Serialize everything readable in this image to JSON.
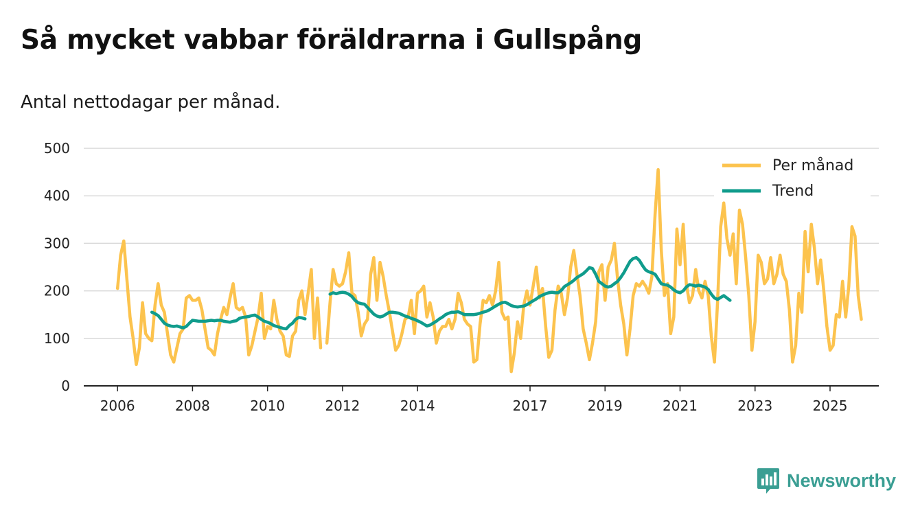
{
  "title": "Så mycket vabbar föräldrarna i Gullspång",
  "subtitle": "Antal nettodagar per månad.",
  "brand": {
    "name": "Newsworthy",
    "icon": "newsworthy-logo-icon"
  },
  "colors": {
    "monthly": "#fcc34e",
    "trend": "#109c8c",
    "grid": "#d9d9d9",
    "axis": "#222222",
    "brand": "#3a9e93"
  },
  "chart_data": {
    "type": "line",
    "title": "Så mycket vabbar föräldrarna i Gullspång",
    "subtitle": "Antal nettodagar per månad.",
    "xlabel": "",
    "ylabel": "",
    "ylim": [
      0,
      500
    ],
    "xlim": [
      2005.1,
      2026.3
    ],
    "grid": true,
    "legend_position": "top-right",
    "y_ticks": [
      0,
      100,
      200,
      300,
      400,
      500
    ],
    "x_ticks": [
      {
        "label": "2006",
        "value": 2006
      },
      {
        "label": "2008",
        "value": 2008
      },
      {
        "label": "2010",
        "value": 2010
      },
      {
        "label": "2012",
        "value": 2012
      },
      {
        "label": "2014",
        "value": 2014
      },
      {
        "label": "2017",
        "value": 2017
      },
      {
        "label": "2019",
        "value": 2019
      },
      {
        "label": "2021",
        "value": 2021
      },
      {
        "label": "2023",
        "value": 2023
      },
      {
        "label": "2025",
        "value": 2025
      }
    ],
    "series": [
      {
        "name": "Per månad",
        "start": 2006.0,
        "values": [
          205,
          275,
          305,
          225,
          145,
          100,
          45,
          80,
          175,
          110,
          100,
          95,
          170,
          215,
          170,
          155,
          110,
          65,
          50,
          80,
          110,
          120,
          185,
          190,
          180,
          180,
          185,
          160,
          120,
          80,
          75,
          65,
          110,
          140,
          165,
          150,
          185,
          215,
          165,
          160,
          165,
          145,
          65,
          85,
          115,
          145,
          195,
          100,
          125,
          120,
          180,
          140,
          115,
          105,
          65,
          62,
          105,
          115,
          180,
          200,
          150,
          195,
          245,
          100,
          185,
          80,
          null,
          90,
          175,
          245,
          215,
          210,
          215,
          240,
          280,
          195,
          190,
          155,
          105,
          130,
          140,
          235,
          270,
          180,
          260,
          230,
          190,
          155,
          115,
          75,
          85,
          110,
          140,
          145,
          180,
          110,
          195,
          200,
          210,
          145,
          175,
          145,
          90,
          115,
          125,
          125,
          140,
          120,
          140,
          195,
          175,
          140,
          130,
          125,
          50,
          55,
          130,
          180,
          175,
          190,
          170,
          200,
          260,
          155,
          140,
          145,
          30,
          70,
          135,
          100,
          170,
          200,
          170,
          210,
          250,
          185,
          205,
          125,
          60,
          75,
          160,
          210,
          195,
          150,
          185,
          250,
          285,
          235,
          190,
          120,
          90,
          55,
          90,
          135,
          240,
          255,
          180,
          250,
          265,
          300,
          225,
          170,
          130,
          65,
          120,
          190,
          215,
          210,
          220,
          210,
          195,
          230,
          360,
          455,
          285,
          190,
          215,
          110,
          145,
          330,
          255,
          340,
          215,
          175,
          190,
          245,
          200,
          185,
          220,
          190,
          105,
          50,
          175,
          335,
          385,
          310,
          275,
          320,
          215,
          370,
          340,
          270,
          190,
          75,
          135,
          275,
          260,
          215,
          225,
          270,
          215,
          235,
          275,
          235,
          220,
          160,
          50,
          85,
          195,
          155,
          325,
          240,
          340,
          290,
          215,
          265,
          200,
          125,
          75,
          85,
          150,
          145,
          220,
          145,
          210,
          335,
          315,
          190,
          140
        ]
      },
      {
        "name": "Trend",
        "start": 2006.9167,
        "values": [
          155,
          152,
          148,
          140,
          132,
          128,
          126,
          125,
          126,
          124,
          122,
          125,
          132,
          138,
          137,
          136,
          136,
          136,
          137,
          138,
          137,
          138,
          138,
          136,
          135,
          134,
          136,
          137,
          142,
          144,
          145,
          146,
          148,
          149,
          145,
          140,
          136,
          134,
          131,
          127,
          125,
          123,
          121,
          120,
          127,
          132,
          140,
          144,
          143,
          141,
          null,
          null,
          null,
          null,
          null,
          null,
          null,
          193,
          196,
          194,
          196,
          197,
          196,
          193,
          188,
          180,
          175,
          173,
          172,
          165,
          158,
          151,
          147,
          145,
          147,
          151,
          155,
          155,
          154,
          153,
          150,
          147,
          145,
          142,
          140,
          137,
          134,
          130,
          126,
          128,
          132,
          136,
          141,
          145,
          150,
          153,
          155,
          155,
          156,
          153,
          150,
          150,
          150,
          150,
          151,
          153,
          155,
          157,
          160,
          164,
          168,
          172,
          175,
          176,
          173,
          169,
          167,
          166,
          167,
          168,
          171,
          175,
          179,
          183,
          188,
          191,
          194,
          196,
          197,
          196,
          196,
          201,
          209,
          213,
          217,
          222,
          228,
          232,
          236,
          242,
          249,
          247,
          235,
          220,
          215,
          210,
          208,
          210,
          215,
          220,
          228,
          238,
          250,
          262,
          268,
          270,
          264,
          253,
          244,
          240,
          238,
          235,
          225,
          215,
          213,
          212,
          208,
          202,
          198,
          196,
          200,
          208,
          213,
          212,
          210,
          212,
          210,
          208,
          203,
          193,
          185,
          182,
          186,
          190,
          185,
          180
        ]
      }
    ]
  }
}
